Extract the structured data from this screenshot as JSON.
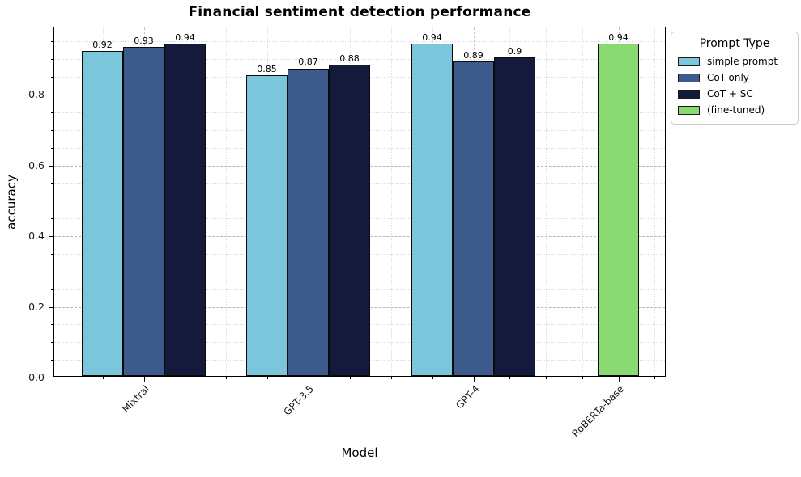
{
  "title": "Financial sentiment detection performance",
  "xlabel": "Model",
  "ylabel": "accuracy",
  "legend": {
    "title": "Prompt Type",
    "items": [
      {
        "label": "simple prompt",
        "color": "#7bc6db"
      },
      {
        "label": "CoT-only",
        "color": "#3c5a8c"
      },
      {
        "label": "CoT + SC",
        "color": "#131a3c"
      },
      {
        "label": "(fine-tuned)",
        "color": "#8bd973"
      }
    ]
  },
  "chart_data": {
    "type": "bar",
    "title": "Financial sentiment detection performance",
    "xlabel": "Model",
    "ylabel": "accuracy",
    "categories": [
      "Mixtral",
      "GPT-3.5",
      "GPT-4",
      "RoBERTa-base"
    ],
    "series": [
      {
        "name": "simple prompt",
        "color": "#7bc6db",
        "values": [
          0.92,
          0.85,
          0.94,
          null
        ],
        "labels": [
          "0.92",
          "0.85",
          "0.94",
          ""
        ]
      },
      {
        "name": "CoT-only",
        "color": "#3c5a8c",
        "values": [
          0.93,
          0.87,
          0.89,
          null
        ],
        "labels": [
          "0.93",
          "0.87",
          "0.89",
          ""
        ]
      },
      {
        "name": "CoT + SC",
        "color": "#131a3c",
        "values": [
          0.94,
          0.88,
          0.9,
          null
        ],
        "labels": [
          "0.94",
          "0.88",
          "0.9",
          ""
        ]
      },
      {
        "name": "(fine-tuned)",
        "color": "#8bd973",
        "values": [
          null,
          null,
          null,
          0.94
        ],
        "labels": [
          "",
          "",
          "",
          "0.94"
        ]
      }
    ],
    "ylim": [
      0,
      0.99
    ],
    "yticks": [
      "0.0",
      "0.2",
      "0.4",
      "0.6",
      "0.8"
    ],
    "ytick_values": [
      0,
      0.2,
      0.4,
      0.6,
      0.8
    ],
    "minor_ytick_step": 0.05,
    "grid": "major dashed gray + minor dotted light gray, horizontal and vertical",
    "legend_position": "upper right, outside plot",
    "bar_edge_color": "#0a0a0a"
  }
}
